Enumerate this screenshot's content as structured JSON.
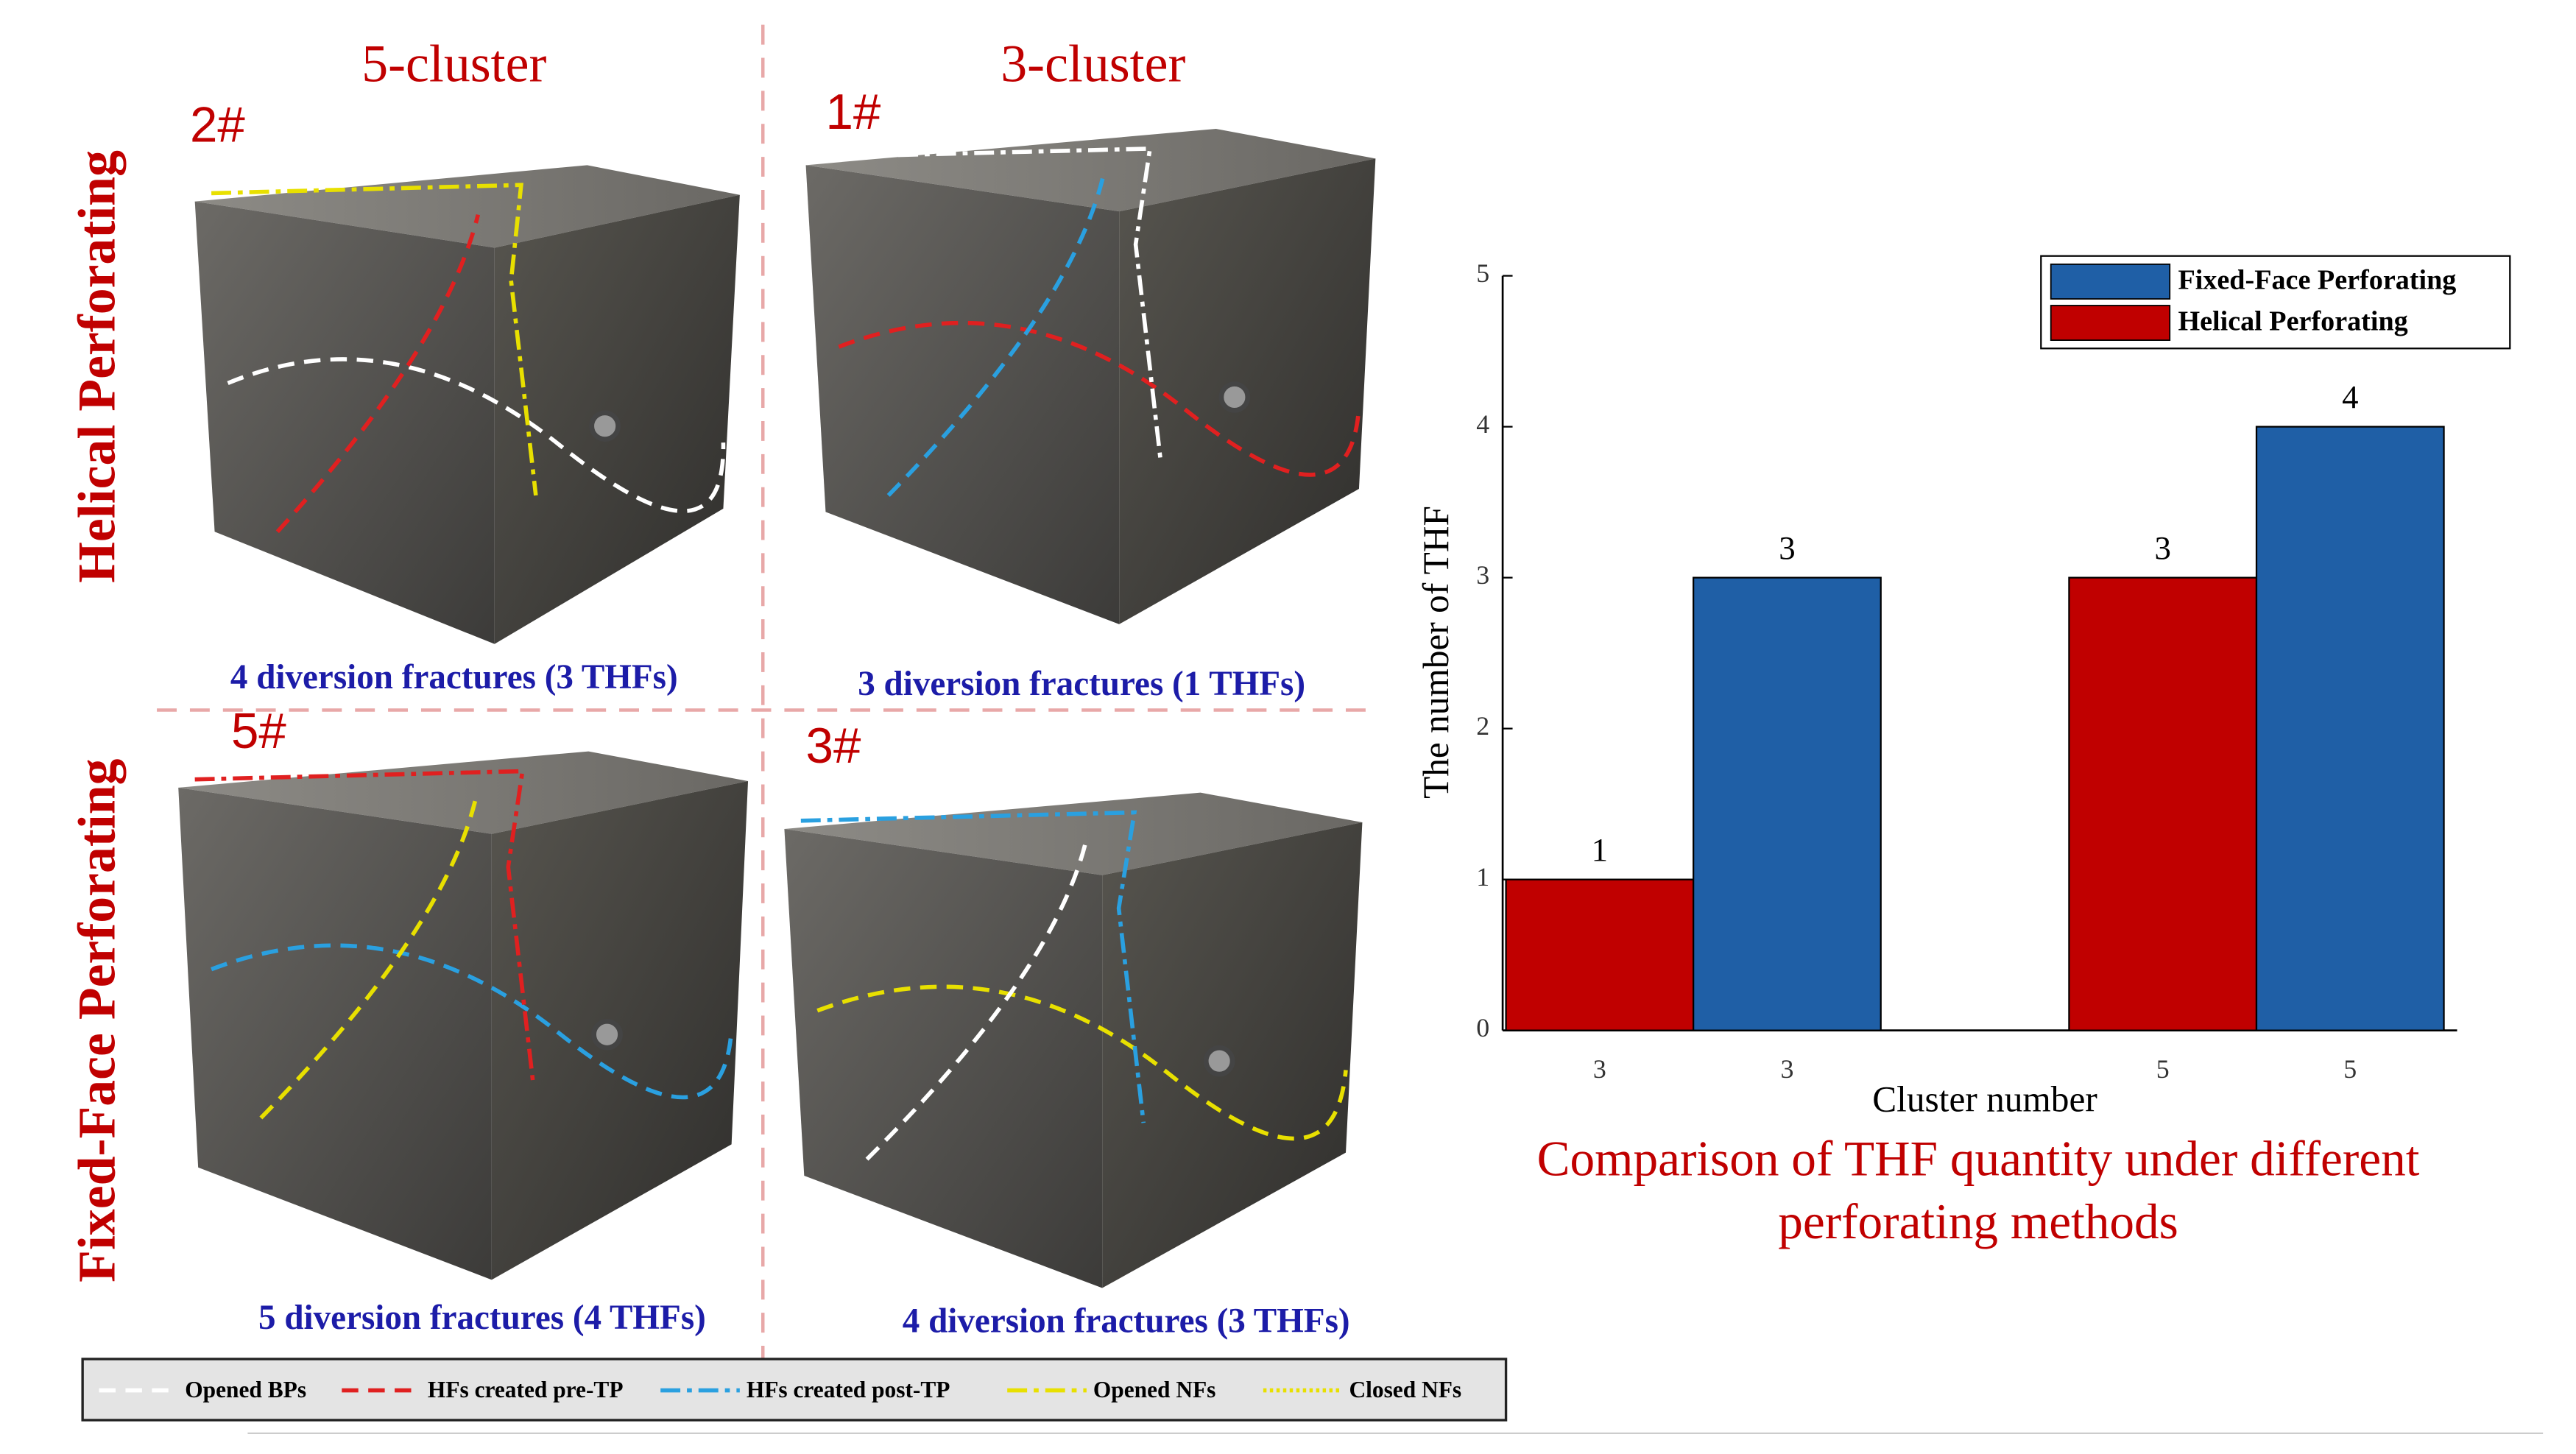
{
  "chart_data": {
    "type": "bar",
    "categories": [
      "3",
      "3",
      "5",
      "5"
    ],
    "series": [
      {
        "name": "Fixed-Face Perforating",
        "color": "#1f5fa6",
        "values": [
          null,
          3,
          null,
          4
        ]
      },
      {
        "name": "Helical Perforating",
        "color": "#c00000",
        "values": [
          1,
          null,
          3,
          null
        ]
      }
    ],
    "ylim": [
      0,
      5
    ],
    "yticks": [
      0,
      1,
      2,
      3,
      4,
      5
    ],
    "xlabel": "Cluster number",
    "ylabel": "The number of THF",
    "legend": "upper right",
    "caption": [
      "Comparison of THF quantity under different",
      "perforating methods"
    ]
  },
  "panels": {
    "column_titles": [
      "5-cluster",
      "3-cluster"
    ],
    "row_titles": [
      "Helical Perforating",
      "Fixed-Face Perforating"
    ],
    "samples": [
      {
        "id": "2#",
        "caption": "4 diversion fractures (3 THFs)"
      },
      {
        "id": "1#",
        "caption": "3 diversion fractures (1 THFs)"
      },
      {
        "id": "5#",
        "caption": "5 diversion fractures (4 THFs)"
      },
      {
        "id": "3#",
        "caption": "4 diversion fractures (3 THFs)"
      }
    ],
    "line_legend": [
      "Opened BPs",
      "HFs created pre-TP",
      "HFs created post-TP",
      "Opened NFs",
      "Closed NFs"
    ]
  }
}
